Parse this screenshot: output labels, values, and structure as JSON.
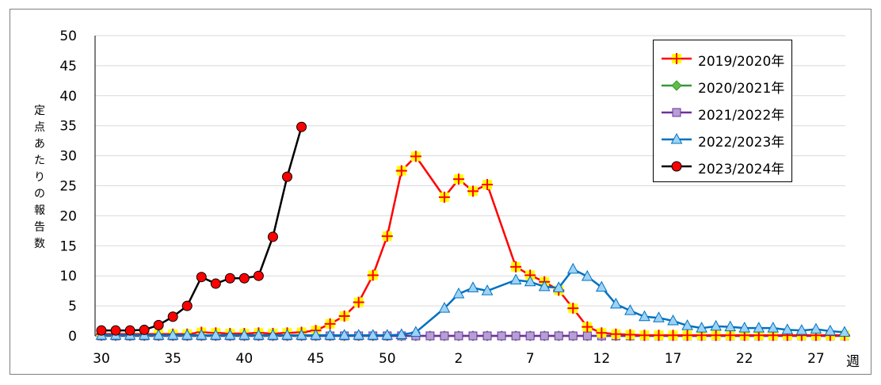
{
  "chart_data": {
    "type": "line",
    "title": "",
    "ylabel": "定点あたりの報告数",
    "xlabel": "週",
    "ylim": [
      0,
      50
    ],
    "yticks": [
      0,
      5,
      10,
      15,
      20,
      25,
      30,
      35,
      40,
      45,
      50
    ],
    "x_tick_labels": [
      "30",
      "35",
      "40",
      "45",
      "50",
      "2",
      "7",
      "12",
      "17",
      "22",
      "27"
    ],
    "weeks_per_season": 53,
    "grid": true,
    "legend_position": "top-right",
    "series": [
      {
        "name": "2019/2020年",
        "color": "#ff0000",
        "marker": "plus",
        "marker_fill": "#ffff00",
        "values": [
          0.3,
          0.3,
          0.3,
          0.3,
          0.3,
          0.3,
          0.3,
          0.6,
          0.5,
          0.4,
          0.4,
          0.5,
          0.4,
          0.5,
          0.6,
          0.9,
          2.0,
          3.3,
          5.6,
          10.1,
          16.6,
          27.5,
          29.9,
          null,
          23.1,
          26.1,
          24.1,
          25.2,
          null,
          11.5,
          10.1,
          9.0,
          7.6,
          4.6,
          1.5,
          0.5,
          0.3,
          0.2,
          0.1,
          0.1,
          0.1,
          0.1,
          0.1,
          0.1,
          0.1,
          0.1,
          0.1,
          0.1,
          0.1,
          0.1,
          0.1,
          0.1,
          0.1
        ]
      },
      {
        "name": "2020/2021年",
        "color": "#339933",
        "marker": "diamond",
        "marker_fill": "#66bb44",
        "values": [
          0,
          0,
          0,
          0,
          0,
          0,
          0,
          0,
          0,
          0,
          0,
          0,
          0,
          0,
          0,
          0,
          0,
          0,
          0,
          0,
          0,
          0,
          0,
          0,
          0,
          0,
          0,
          0,
          0,
          0,
          0,
          0,
          0,
          0,
          0,
          0,
          0,
          0,
          0,
          0,
          0,
          0,
          0,
          0,
          0,
          0,
          0,
          0,
          0,
          0,
          0,
          0,
          0
        ]
      },
      {
        "name": "2021/2022年",
        "color": "#7030a0",
        "marker": "square",
        "marker_fill": "#b4a0d2",
        "values": [
          0,
          0,
          0,
          0,
          0,
          0,
          0,
          0,
          0,
          0,
          0,
          0,
          0,
          0,
          0,
          0,
          0,
          0,
          0,
          0,
          0,
          0,
          0,
          0,
          0,
          0,
          0,
          0,
          0,
          0,
          0,
          0,
          0,
          0,
          0,
          0,
          0,
          0,
          0,
          0,
          0,
          0,
          0,
          0,
          0,
          0,
          0,
          0,
          0,
          0,
          0,
          0,
          0
        ]
      },
      {
        "name": "2022/2023年",
        "color": "#0070c0",
        "marker": "triangle",
        "marker_fill": "#9dd3f5",
        "values": [
          0.1,
          0.1,
          0.1,
          0.1,
          0.1,
          0.1,
          0.1,
          0.1,
          0.1,
          0.1,
          0.1,
          0.1,
          0.1,
          0.1,
          0.1,
          0.1,
          0.1,
          0.1,
          0.1,
          0.1,
          0.1,
          0.2,
          0.6,
          null,
          4.6,
          7.0,
          8.0,
          7.5,
          null,
          9.3,
          9.0,
          8.2,
          8.0,
          11.1,
          9.9,
          8.1,
          5.3,
          4.2,
          3.2,
          3.0,
          2.5,
          1.7,
          1.3,
          1.6,
          1.5,
          1.3,
          1.3,
          1.3,
          1.0,
          0.9,
          1.1,
          0.8,
          0.6
        ]
      },
      {
        "name": "2023/2024年",
        "color": "#000000",
        "marker": "circle",
        "marker_fill": "#ff0000",
        "values": [
          0.9,
          0.9,
          0.9,
          1.0,
          1.8,
          3.2,
          5.0,
          9.8,
          8.7,
          9.6,
          9.6,
          10.0,
          16.5,
          26.5,
          34.8
        ]
      }
    ]
  }
}
